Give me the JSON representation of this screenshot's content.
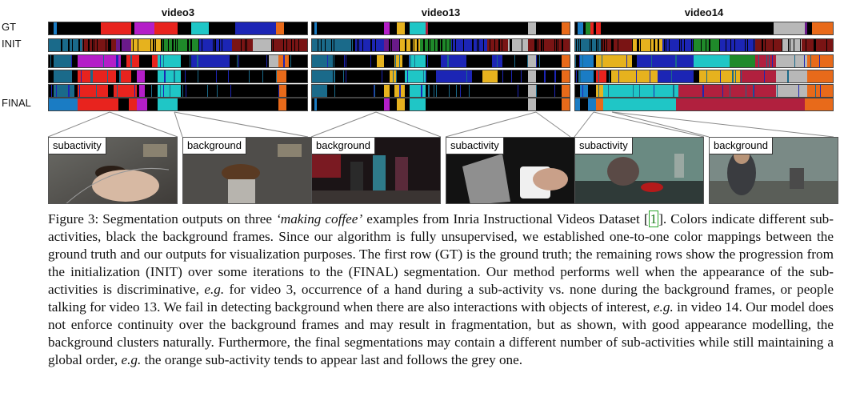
{
  "panels": [
    {
      "title": "video3"
    },
    {
      "title": "video13"
    },
    {
      "title": "video14"
    }
  ],
  "row_labels": [
    "GT",
    "INIT",
    "",
    "",
    "",
    "FINAL"
  ],
  "colors": {
    "background": "#000000",
    "blue": "#1a7cc4",
    "red": "#e8231e",
    "magenta": "#b41ec8",
    "cyan": "#1fc6c6",
    "navy": "#1c25b5",
    "orange": "#e86a1a",
    "yellow": "#e6b21e",
    "grey": "#b8b8b8",
    "crimson": "#b1203e",
    "purple": "#6a1a8a",
    "green": "#1f8a2a",
    "teal": "#1a6a8a",
    "darkred": "#7a1414"
  },
  "thumbnails": [
    {
      "label": "subactivity"
    },
    {
      "label": "background"
    },
    {
      "label": "background"
    },
    {
      "label": "subactivity"
    },
    {
      "label": "subactivity"
    },
    {
      "label": "background"
    }
  ],
  "caption": {
    "p1": "Figure 3: Segmentation outputs on three ",
    "p2": "‘making coffee’",
    "p3": " examples from Inria Instructional Videos Dataset [",
    "p4": "1",
    "p5": "]. Colors indicate different sub-activities, black the background frames. Since our algorithm is fully unsupervised, we established one-to-one color mappings between the ground truth and our outputs for visualization purposes. The first row (GT) is the ground truth; the remaining rows show the progression from the initialization (INIT) over some iterations to the (FINAL) segmentation. Our method performs well when the appearance of the sub-activities is discriminative, ",
    "p6": "e.g.",
    "p7": " for video 3, occurrence of a hand during a sub-activity vs. none during the background frames, or people talking for video 13. We fail in detecting background when there are also interactions with objects of interest, ",
    "p8": "e.g.",
    "p9": " in video 14. Our model does not enforce continuity over the background frames and may result in fragmentation, but as shown, with good appearance modelling, the background clusters naturally. Furthermore, the final segmentations may contain a different number of sub-activities while still maintaining a global order, ",
    "p10": "e.g.",
    "p11": " the orange sub-activity tends to appear last and follows the grey one."
  }
}
